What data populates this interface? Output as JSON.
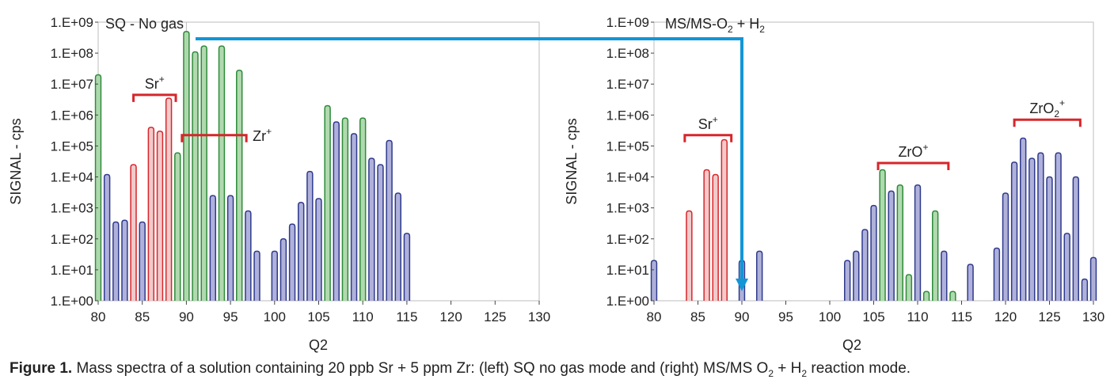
{
  "chart_data": [
    {
      "type": "bar",
      "name": "left",
      "title": "SQ - No gas",
      "xlabel": "Q2",
      "ylabel": "SIGNAL - cps",
      "yscale": "log",
      "ylim_exp": [
        0,
        9
      ],
      "ytick_labels": [
        "1.E+00",
        "1.E+01",
        "1.E+02",
        "1.E+03",
        "1.E+04",
        "1.E+05",
        "1.E+06",
        "1.E+07",
        "1.E+08",
        "1.E+09"
      ],
      "xlim": [
        80,
        130
      ],
      "xticks": [
        80,
        85,
        90,
        95,
        100,
        105,
        110,
        115,
        120,
        125,
        130
      ],
      "grid_x": 90,
      "colors": {
        "blue": "#2e3a8c",
        "blue_fill": "#a7a9d6",
        "green": "#2e8b3a",
        "green_fill": "#a9d5a6",
        "red": "#d7262b",
        "red_fill": "#f1c4c4"
      },
      "annotations": [
        {
          "label": "Sr",
          "sup": "+",
          "x_from": 84,
          "x_to": 88.8,
          "y_exp": 6.65
        },
        {
          "label": "Zr",
          "sup": "+",
          "x_from": 89.5,
          "x_to": 96.8,
          "y_exp": 5.35
        }
      ],
      "peaks": [
        {
          "m": 80,
          "v": 20000000,
          "c": "green"
        },
        {
          "m": 81,
          "v": 12000,
          "c": "blue"
        },
        {
          "m": 82,
          "v": 350,
          "c": "blue"
        },
        {
          "m": 83,
          "v": 400,
          "c": "blue"
        },
        {
          "m": 84,
          "v": 25000,
          "c": "red"
        },
        {
          "m": 85,
          "v": 350,
          "c": "blue"
        },
        {
          "m": 86,
          "v": 400000,
          "c": "red"
        },
        {
          "m": 87,
          "v": 300000,
          "c": "red"
        },
        {
          "m": 88,
          "v": 3500000,
          "c": "red"
        },
        {
          "m": 89,
          "v": 60000,
          "c": "green"
        },
        {
          "m": 90,
          "v": 500000000,
          "c": "green"
        },
        {
          "m": 91,
          "v": 110000000,
          "c": "green"
        },
        {
          "m": 92,
          "v": 170000000,
          "c": "green"
        },
        {
          "m": 93,
          "v": 2500,
          "c": "blue"
        },
        {
          "m": 94,
          "v": 170000000,
          "c": "green"
        },
        {
          "m": 95,
          "v": 2500,
          "c": "blue"
        },
        {
          "m": 96,
          "v": 28000000,
          "c": "green"
        },
        {
          "m": 97,
          "v": 800,
          "c": "blue"
        },
        {
          "m": 98,
          "v": 40,
          "c": "blue"
        },
        {
          "m": 100,
          "v": 40,
          "c": "blue"
        },
        {
          "m": 101,
          "v": 100,
          "c": "blue"
        },
        {
          "m": 102,
          "v": 300,
          "c": "blue"
        },
        {
          "m": 103,
          "v": 1500,
          "c": "blue"
        },
        {
          "m": 104,
          "v": 15000,
          "c": "blue"
        },
        {
          "m": 105,
          "v": 2000,
          "c": "blue"
        },
        {
          "m": 106,
          "v": 2000000,
          "c": "green"
        },
        {
          "m": 107,
          "v": 600000,
          "c": "blue"
        },
        {
          "m": 108,
          "v": 800000,
          "c": "green"
        },
        {
          "m": 109,
          "v": 250000,
          "c": "blue"
        },
        {
          "m": 110,
          "v": 800000,
          "c": "green"
        },
        {
          "m": 111,
          "v": 40000,
          "c": "blue"
        },
        {
          "m": 112,
          "v": 25000,
          "c": "blue"
        },
        {
          "m": 113,
          "v": 150000,
          "c": "blue"
        },
        {
          "m": 114,
          "v": 3000,
          "c": "blue"
        },
        {
          "m": 115,
          "v": 150,
          "c": "blue"
        }
      ]
    },
    {
      "type": "bar",
      "name": "right",
      "title": "MS/MS-O",
      "title_sub": "2",
      "title_tail": " + H",
      "title_sub2": "2",
      "xlabel": "Q2",
      "ylabel": "SIGNAL - cps",
      "yscale": "log",
      "ylim_exp": [
        0,
        9
      ],
      "ytick_labels": [
        "1.E+00",
        "1.E+01",
        "1.E+02",
        "1.E+03",
        "1.E+04",
        "1.E+05",
        "1.E+06",
        "1.E+07",
        "1.E+08",
        "1.E+09"
      ],
      "xlim": [
        80,
        130
      ],
      "xticks": [
        80,
        85,
        90,
        95,
        100,
        105,
        110,
        115,
        120,
        125,
        130
      ],
      "grid_x": null,
      "colors": {
        "blue": "#2e3a8c",
        "blue_fill": "#a7a9d6",
        "green": "#2e8b3a",
        "green_fill": "#a9d5a6",
        "red": "#d7262b",
        "red_fill": "#f1c4c4"
      },
      "annotations": [
        {
          "label": "Sr",
          "sup": "+",
          "x_from": 83.5,
          "x_to": 88.8,
          "y_exp": 5.35
        },
        {
          "label": "ZrO",
          "sup": "+",
          "x_from": 105.5,
          "x_to": 113.5,
          "y_exp": 4.45
        },
        {
          "label": "ZrO",
          "sub": "2",
          "sup": "+",
          "x_from": 121,
          "x_to": 128.5,
          "y_exp": 5.85
        }
      ],
      "peaks": [
        {
          "m": 80,
          "v": 20,
          "c": "blue"
        },
        {
          "m": 84,
          "v": 800,
          "c": "red"
        },
        {
          "m": 86,
          "v": 17000,
          "c": "red"
        },
        {
          "m": 87,
          "v": 12000,
          "c": "red"
        },
        {
          "m": 88,
          "v": 160000,
          "c": "red"
        },
        {
          "m": 90,
          "v": 20,
          "c": "blue"
        },
        {
          "m": 92,
          "v": 40,
          "c": "blue"
        },
        {
          "m": 102,
          "v": 20,
          "c": "blue"
        },
        {
          "m": 103,
          "v": 40,
          "c": "blue"
        },
        {
          "m": 104,
          "v": 200,
          "c": "blue"
        },
        {
          "m": 105,
          "v": 1200,
          "c": "blue"
        },
        {
          "m": 106,
          "v": 17000,
          "c": "green"
        },
        {
          "m": 107,
          "v": 3500,
          "c": "blue"
        },
        {
          "m": 108,
          "v": 5500,
          "c": "green"
        },
        {
          "m": 109,
          "v": 7,
          "c": "green"
        },
        {
          "m": 110,
          "v": 5500,
          "c": "blue"
        },
        {
          "m": 111,
          "v": 2,
          "c": "green"
        },
        {
          "m": 112,
          "v": 800,
          "c": "green"
        },
        {
          "m": 113,
          "v": 40,
          "c": "blue"
        },
        {
          "m": 114,
          "v": 2,
          "c": "green"
        },
        {
          "m": 116,
          "v": 15,
          "c": "blue"
        },
        {
          "m": 119,
          "v": 50,
          "c": "blue"
        },
        {
          "m": 120,
          "v": 3000,
          "c": "blue"
        },
        {
          "m": 121,
          "v": 30000,
          "c": "blue"
        },
        {
          "m": 122,
          "v": 180000,
          "c": "blue"
        },
        {
          "m": 123,
          "v": 40000,
          "c": "blue"
        },
        {
          "m": 124,
          "v": 60000,
          "c": "blue"
        },
        {
          "m": 125,
          "v": 10000,
          "c": "blue"
        },
        {
          "m": 126,
          "v": 60000,
          "c": "blue"
        },
        {
          "m": 127,
          "v": 150,
          "c": "blue"
        },
        {
          "m": 128,
          "v": 10000,
          "c": "blue"
        },
        {
          "m": 129,
          "v": 5,
          "c": "blue"
        },
        {
          "m": 130,
          "v": 25,
          "c": "blue"
        }
      ]
    }
  ],
  "arrow_color": "#1296d6",
  "caption": {
    "label": "Figure 1.",
    "text_a": " Mass spectra of a solution containing 20 ppb Sr + 5 ppm Zr: (left) SQ no gas mode and (right) MS/MS O",
    "sub_a": "2",
    "text_b": " + H",
    "sub_b": "2",
    "text_c": " reaction mode."
  }
}
